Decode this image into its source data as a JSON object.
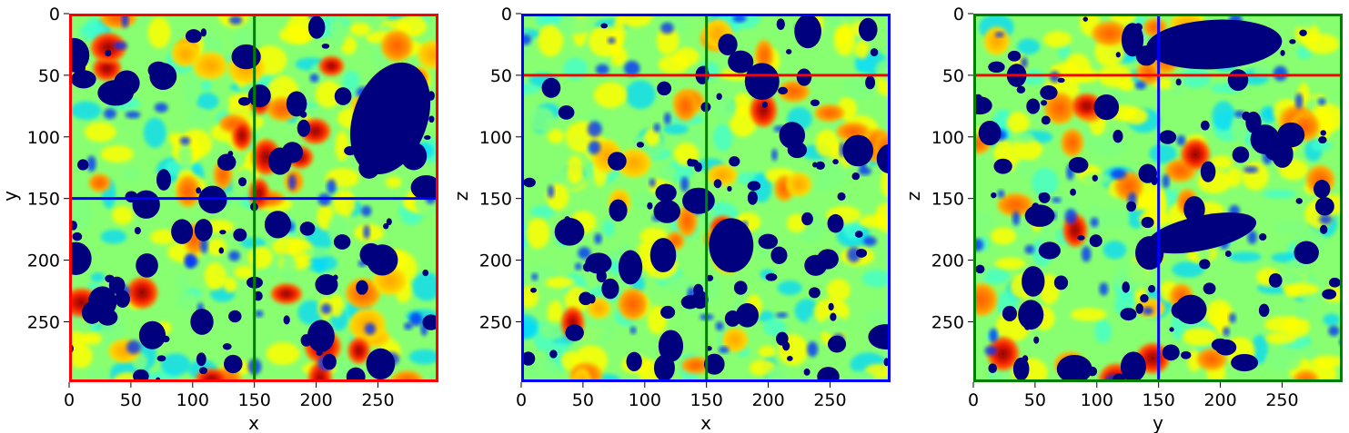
{
  "colormap": "jet",
  "palette": {
    "pore": "#00007f",
    "background": "#88ff70",
    "colormap_stops": [
      "#00007f",
      "#0000ff",
      "#00ffff",
      "#7fff7f",
      "#ffff00",
      "#ff7f00",
      "#ff0000",
      "#7f0000"
    ]
  },
  "chart_data": [
    {
      "type": "heatmap",
      "title": "",
      "xlabel": "x",
      "ylabel": "y",
      "xlim": [
        0,
        299
      ],
      "ylim": [
        299,
        0
      ],
      "xticks": [
        "0",
        "50",
        "100",
        "150",
        "200",
        "250"
      ],
      "yticks": [
        "0",
        "50",
        "100",
        "150",
        "200",
        "250"
      ],
      "frame_color": "#ff0000",
      "crosshairs": [
        {
          "orientation": "vertical",
          "at": 150,
          "color": "#008000"
        },
        {
          "orientation": "horizontal",
          "at": 150,
          "color": "#0000ff"
        }
      ]
    },
    {
      "type": "heatmap",
      "title": "",
      "xlabel": "x",
      "ylabel": "z",
      "xlim": [
        0,
        299
      ],
      "ylim": [
        299,
        0
      ],
      "xticks": [
        "0",
        "50",
        "100",
        "150",
        "200",
        "250"
      ],
      "yticks": [
        "0",
        "50",
        "100",
        "150",
        "200",
        "250"
      ],
      "frame_color": "#0000ff",
      "crosshairs": [
        {
          "orientation": "vertical",
          "at": 150,
          "color": "#008000"
        },
        {
          "orientation": "horizontal",
          "at": 50,
          "color": "#ff0000"
        }
      ]
    },
    {
      "type": "heatmap",
      "title": "",
      "xlabel": "y",
      "ylabel": "z",
      "xlim": [
        0,
        299
      ],
      "ylim": [
        299,
        0
      ],
      "xticks": [
        "0",
        "50",
        "100",
        "150",
        "200",
        "250"
      ],
      "yticks": [
        "0",
        "50",
        "100",
        "150",
        "200",
        "250"
      ],
      "frame_color": "#008000",
      "crosshairs": [
        {
          "orientation": "vertical",
          "at": 150,
          "color": "#0000ff"
        },
        {
          "orientation": "horizontal",
          "at": 50,
          "color": "#ff0000"
        }
      ]
    }
  ]
}
